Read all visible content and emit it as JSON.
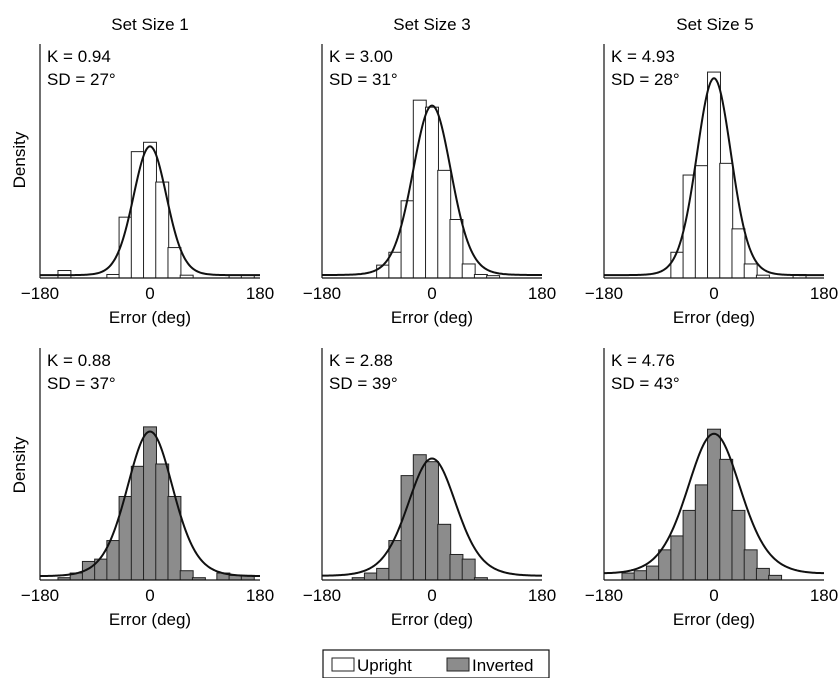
{
  "figure": {
    "column_titles": [
      "Set Size 1",
      "Set Size 3",
      "Set Size 5"
    ],
    "y_axis_label": "Density",
    "x_axis_label": "Error (deg)",
    "legend": {
      "upright_label": "Upright",
      "inverted_label": "Inverted"
    },
    "colors": {
      "upright_fill": "#ffffff",
      "inverted_fill": "#8c8c8c",
      "bar_stroke": "#222222",
      "curve": "#111111"
    }
  },
  "chart_data": [
    {
      "type": "bar",
      "panel": "upright-set-size-1",
      "title": "Set Size 1",
      "condition": "Upright",
      "annotations": [
        "K = 0.94",
        "SD = 27°"
      ],
      "K": 0.94,
      "SD_deg": 27,
      "x": [
        -160,
        -140,
        -120,
        -100,
        -80,
        -60,
        -40,
        -20,
        0,
        20,
        40,
        60,
        80,
        100,
        120,
        140,
        160
      ],
      "values": [
        0,
        0.032,
        0,
        0,
        0,
        0.015,
        0.26,
        0.54,
        0.58,
        0.41,
        0.13,
        0.012,
        0,
        0,
        0,
        0.012,
        0.012
      ],
      "xlabel": "Error (deg)",
      "ylabel": "Density",
      "xticks": [
        "−180",
        "0",
        "180"
      ],
      "xlim": [
        -180,
        180
      ],
      "ylim": [
        0,
        1
      ]
    },
    {
      "type": "bar",
      "panel": "upright-set-size-3",
      "title": "Set Size 3",
      "condition": "Upright",
      "annotations": [
        "K = 3.00",
        "SD = 31°"
      ],
      "K": 3.0,
      "SD_deg": 31,
      "x": [
        -160,
        -140,
        -120,
        -100,
        -80,
        -60,
        -40,
        -20,
        0,
        20,
        40,
        60,
        80,
        100,
        120,
        140,
        160
      ],
      "values": [
        0,
        0,
        0,
        0,
        0.055,
        0.11,
        0.33,
        0.76,
        0.73,
        0.46,
        0.25,
        0.06,
        0.015,
        0.01,
        0,
        0,
        0
      ],
      "xlabel": "Error (deg)",
      "ylabel": "",
      "xticks": [
        "−180",
        "0",
        "180"
      ],
      "xlim": [
        -180,
        180
      ],
      "ylim": [
        0,
        1
      ]
    },
    {
      "type": "bar",
      "panel": "upright-set-size-5",
      "title": "Set Size 5",
      "condition": "Upright",
      "annotations": [
        "K = 4.93",
        "SD = 28°"
      ],
      "K": 4.93,
      "SD_deg": 28,
      "x": [
        -160,
        -140,
        -120,
        -100,
        -80,
        -60,
        -40,
        -20,
        0,
        20,
        40,
        60,
        80,
        100,
        120,
        140,
        160
      ],
      "values": [
        0,
        0,
        0,
        0,
        0,
        0.11,
        0.44,
        0.48,
        0.88,
        0.49,
        0.21,
        0.06,
        0.012,
        0,
        0,
        0.015,
        0
      ],
      "xlabel": "Error (deg)",
      "ylabel": "",
      "xticks": [
        "−180",
        "0",
        "180"
      ],
      "xlim": [
        -180,
        180
      ],
      "ylim": [
        0,
        1
      ]
    },
    {
      "type": "bar",
      "panel": "inverted-set-size-1",
      "title": "",
      "condition": "Inverted",
      "annotations": [
        "K = 0.88",
        "SD = 37°"
      ],
      "K": 0.88,
      "SD_deg": 37,
      "x": [
        -160,
        -140,
        -120,
        -100,
        -80,
        -60,
        -40,
        -20,
        0,
        20,
        40,
        60,
        80,
        100,
        120,
        140,
        160
      ],
      "values": [
        0,
        0.01,
        0.03,
        0.08,
        0.09,
        0.17,
        0.36,
        0.49,
        0.66,
        0.5,
        0.36,
        0.04,
        0.01,
        0,
        0.03,
        0.02,
        0.02
      ],
      "xlabel": "Error (deg)",
      "ylabel": "Density",
      "xticks": [
        "−180",
        "0",
        "180"
      ],
      "xlim": [
        -180,
        180
      ],
      "ylim": [
        0,
        1
      ]
    },
    {
      "type": "bar",
      "panel": "inverted-set-size-3",
      "title": "",
      "condition": "Inverted",
      "annotations": [
        "K = 2.88",
        "SD = 39°"
      ],
      "K": 2.88,
      "SD_deg": 39,
      "x": [
        -160,
        -140,
        -120,
        -100,
        -80,
        -60,
        -40,
        -20,
        0,
        20,
        40,
        60,
        80,
        100,
        120,
        140,
        160
      ],
      "values": [
        0,
        0,
        0.01,
        0.03,
        0.05,
        0.17,
        0.45,
        0.54,
        0.51,
        0.24,
        0.11,
        0.09,
        0.01,
        0,
        0,
        0,
        0
      ],
      "xlabel": "Error (deg)",
      "ylabel": "",
      "xticks": [
        "−180",
        "0",
        "180"
      ],
      "xlim": [
        -180,
        180
      ],
      "ylim": [
        0,
        1
      ]
    },
    {
      "type": "bar",
      "panel": "inverted-set-size-5",
      "title": "",
      "condition": "Inverted",
      "annotations": [
        "K = 4.76",
        "SD = 43°"
      ],
      "K": 4.76,
      "SD_deg": 43,
      "x": [
        -160,
        -140,
        -120,
        -100,
        -80,
        -60,
        -40,
        -20,
        0,
        20,
        40,
        60,
        80,
        100,
        120,
        140,
        160
      ],
      "values": [
        0,
        0.03,
        0.04,
        0.06,
        0.13,
        0.19,
        0.3,
        0.41,
        0.65,
        0.52,
        0.3,
        0.13,
        0.05,
        0.02,
        0,
        0,
        0
      ],
      "xlabel": "Error (deg)",
      "ylabel": "",
      "xticks": [
        "−180",
        "0",
        "180"
      ],
      "xlim": [
        -180,
        180
      ],
      "ylim": [
        0,
        1
      ]
    }
  ]
}
